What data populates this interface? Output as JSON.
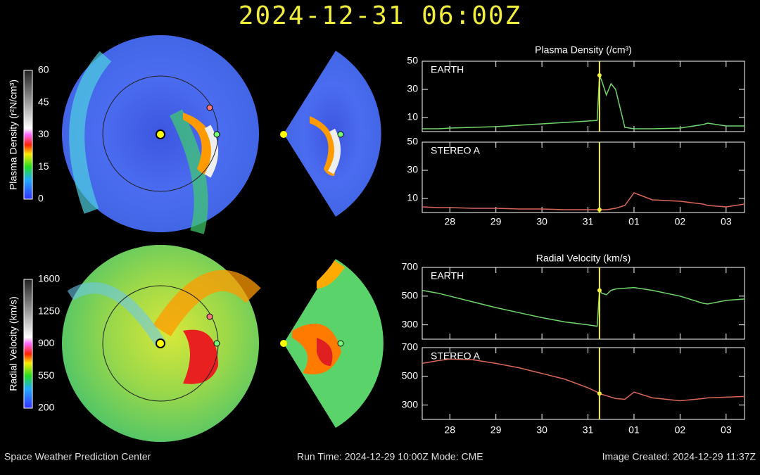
{
  "header": {
    "title": "2024-12-31  06:00Z"
  },
  "colorbars": [
    {
      "label": "Plasma Density (r²N/cm³)",
      "ticks": [
        0,
        15,
        30,
        45,
        60
      ]
    },
    {
      "label": "Radial Velocity (km/s)",
      "ticks": [
        200,
        550,
        900,
        1250,
        1600
      ]
    }
  ],
  "footer": {
    "left": "Space Weather Prediction Center",
    "center": "Run Time: 2024-12-29 10:00Z  Mode: CME",
    "right": "Image Created: 2024-12-29 11:37Z"
  },
  "chart_data": [
    {
      "type": "line",
      "title": "Plasma Density (/cm³)",
      "x": [
        -0.6,
        -0.25,
        0,
        0.5,
        1,
        1.5,
        2,
        2.5,
        3,
        3.2,
        3.25,
        3.3,
        3.4,
        3.5,
        3.6,
        3.8,
        4,
        4.4,
        5,
        5.5,
        5.6,
        6,
        6.4
      ],
      "xlim": [
        -0.6,
        6.4
      ],
      "xticks": [
        {
          "value": 0,
          "label": "28"
        },
        {
          "value": 1,
          "label": "29"
        },
        {
          "value": 2,
          "label": "30"
        },
        {
          "value": 3,
          "label": "31"
        },
        {
          "value": 4,
          "label": "01"
        },
        {
          "value": 5,
          "label": "02"
        },
        {
          "value": 6,
          "label": "03"
        }
      ],
      "marker_x": 3.25,
      "ylim": [
        0,
        50
      ],
      "yticks": [
        10,
        30,
        50
      ],
      "series": [
        {
          "name": "EARTH",
          "color": "#6fd66a",
          "values": [
            2,
            2,
            2.5,
            3,
            3.5,
            4.5,
            5.5,
            6.5,
            7.5,
            8,
            40,
            36,
            26,
            34,
            30,
            3,
            2,
            2,
            2.5,
            5,
            6,
            4,
            4
          ]
        },
        {
          "name": "STEREO A",
          "color": "#d9675a",
          "values": [
            4,
            3.5,
            3.5,
            3,
            3,
            2.5,
            2.5,
            2,
            2,
            2,
            2,
            2,
            2,
            2.5,
            3,
            5,
            14,
            9,
            8,
            6,
            5,
            4,
            6
          ]
        }
      ]
    },
    {
      "type": "line",
      "title": "Radial Velocity (km/s)",
      "x": [
        -0.6,
        -0.25,
        0,
        0.5,
        1,
        1.5,
        2,
        2.5,
        3,
        3.2,
        3.25,
        3.3,
        3.4,
        3.5,
        3.6,
        3.8,
        4,
        4.4,
        5,
        5.5,
        5.6,
        6,
        6.4
      ],
      "xlim": [
        -0.6,
        6.4
      ],
      "xticks": [
        {
          "value": 0,
          "label": "28"
        },
        {
          "value": 1,
          "label": "29"
        },
        {
          "value": 2,
          "label": "30"
        },
        {
          "value": 3,
          "label": "31"
        },
        {
          "value": 4,
          "label": "01"
        },
        {
          "value": 5,
          "label": "02"
        },
        {
          "value": 6,
          "label": "03"
        }
      ],
      "marker_x": 3.25,
      "ylim": [
        200,
        700
      ],
      "yticks": [
        300,
        500,
        700
      ],
      "series": [
        {
          "name": "EARTH",
          "color": "#6fd66a",
          "values": [
            540,
            520,
            500,
            460,
            420,
            385,
            350,
            320,
            300,
            290,
            540,
            520,
            510,
            540,
            550,
            555,
            560,
            540,
            500,
            450,
            445,
            470,
            480
          ]
        },
        {
          "name": "STEREO A",
          "color": "#d9675a",
          "values": [
            590,
            610,
            620,
            615,
            590,
            560,
            520,
            480,
            420,
            390,
            380,
            375,
            365,
            355,
            345,
            340,
            390,
            350,
            330,
            345,
            350,
            355,
            360
          ]
        }
      ]
    }
  ]
}
